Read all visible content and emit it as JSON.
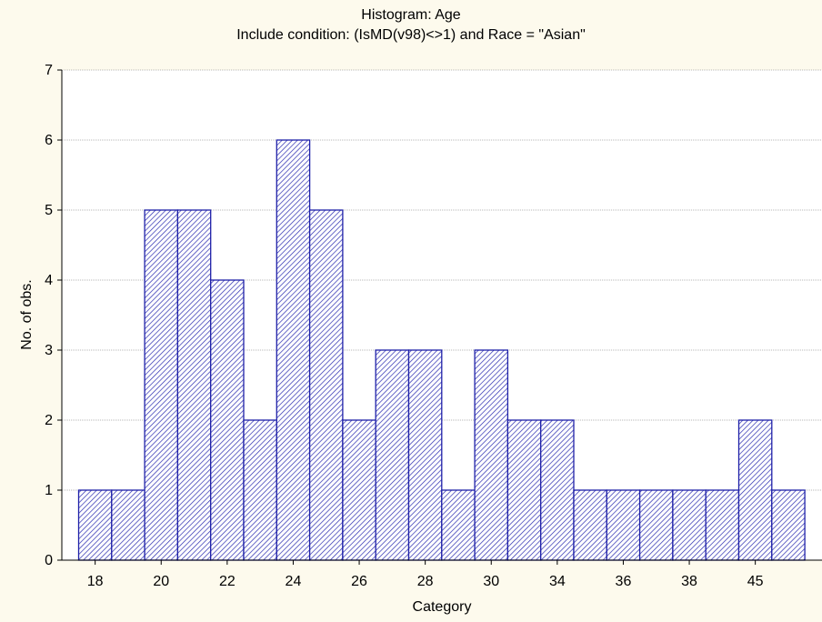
{
  "chart_data": {
    "type": "bar",
    "title": "Histogram: Age",
    "subtitle": "Include condition: (IsMD(v98)<>1)  and Race = \"Asian\"",
    "xlabel": "Category",
    "ylabel": "No. of obs.",
    "ylim": [
      0,
      7
    ],
    "yticks": [
      0,
      1,
      2,
      3,
      4,
      5,
      6,
      7
    ],
    "grid": true,
    "values": [
      1,
      1,
      5,
      5,
      4,
      2,
      6,
      5,
      2,
      3,
      3,
      1,
      3,
      2,
      2,
      1,
      1,
      1,
      1,
      1,
      2,
      1
    ],
    "xtick_labels": [
      {
        "label": "18",
        "bar_index": 0.5
      },
      {
        "label": "20",
        "bar_index": 2.5
      },
      {
        "label": "22",
        "bar_index": 4.5
      },
      {
        "label": "24",
        "bar_index": 6.5
      },
      {
        "label": "26",
        "bar_index": 8.5
      },
      {
        "label": "28",
        "bar_index": 10.5
      },
      {
        "label": "30",
        "bar_index": 12.5
      },
      {
        "label": "34",
        "bar_index": 14.5
      },
      {
        "label": "36",
        "bar_index": 16.5
      },
      {
        "label": "38",
        "bar_index": 18.5
      },
      {
        "label": "45",
        "bar_index": 20.5
      }
    ],
    "colors": {
      "bar_stroke": "#1e20a8",
      "hatch": "#2a2cb0",
      "bar_fill": "#ffffff",
      "plot_bg": "#ffffff",
      "page_bg": "#fdfaed",
      "grid": "#a0a0a0"
    }
  }
}
